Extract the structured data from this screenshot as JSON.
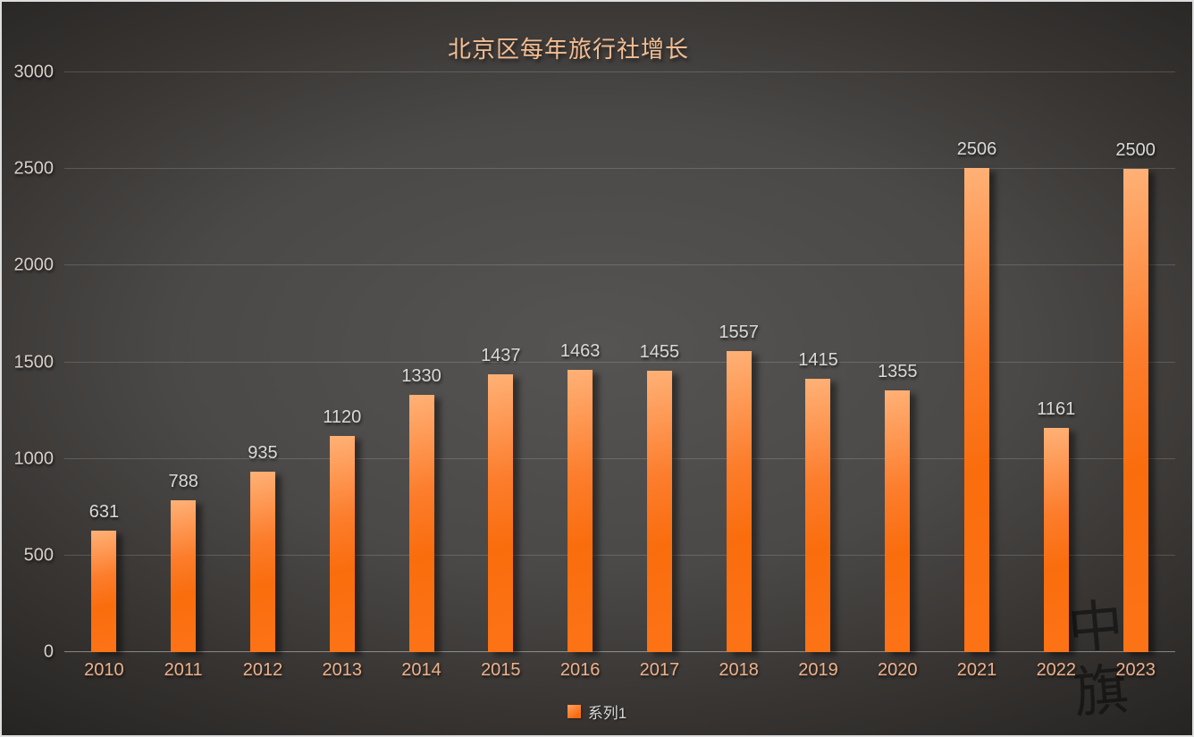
{
  "title": "北京区每年旅行社增长",
  "legend": {
    "label": "系列1",
    "swatch_color": "#fa6d0d"
  },
  "watermark": {
    "chars": [
      "中",
      "旗"
    ]
  },
  "colors": {
    "background_center": "#565452",
    "background_edge": "#262422",
    "frame_border": "#dedede",
    "title_text": "#f3bd93",
    "y_axis_labels": "#d7cfc6",
    "x_axis_labels": "#efb189",
    "data_labels": "#d9d9d8",
    "legend_text": "#d8d8d8",
    "gridline": "rgba(255,255,255,0.16)",
    "bar_gradient_light": "#ffb177",
    "bar_gradient_dark": "#fa6d0d"
  },
  "chart_data": {
    "type": "bar",
    "title": "北京区每年旅行社增长",
    "categories": [
      "2010",
      "2011",
      "2012",
      "2013",
      "2014",
      "2015",
      "2016",
      "2017",
      "2018",
      "2019",
      "2020",
      "2021",
      "2022",
      "2023"
    ],
    "series": [
      {
        "name": "系列1",
        "values": [
          631,
          788,
          935,
          1120,
          1330,
          1437,
          1463,
          1455,
          1557,
          1415,
          1355,
          2506,
          1161,
          2500
        ]
      }
    ],
    "xlabel": "",
    "ylabel": "",
    "ylim": [
      0,
      3000
    ],
    "yticks": [
      0,
      500,
      1000,
      1500,
      2000,
      2500,
      3000
    ],
    "grid": true,
    "data_labels": true,
    "legend_position": "bottom"
  }
}
